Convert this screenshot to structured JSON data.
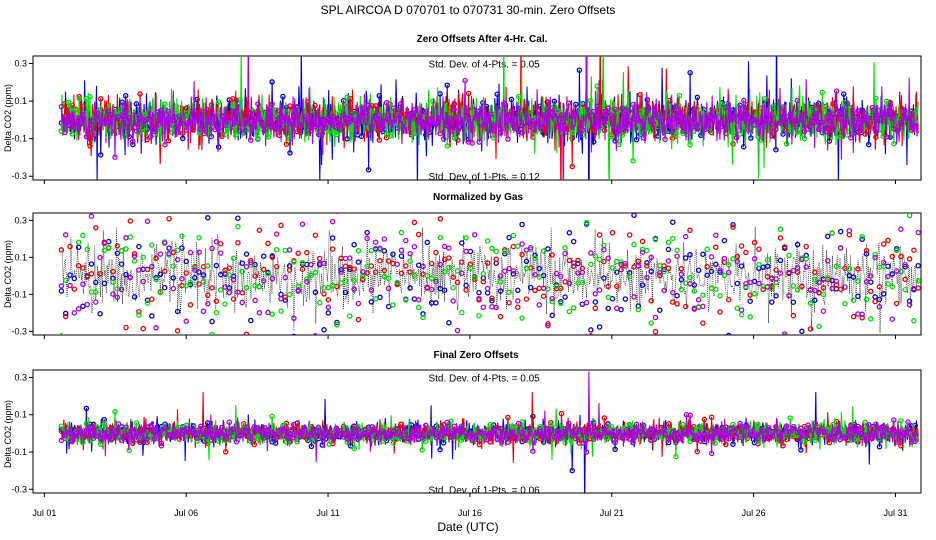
{
  "title": "SPL   AIRCOA D   070701 to 070731   30-min. Zero Offsets",
  "xlabel": "Date (UTC)",
  "colors": {
    "gas1": "#0000dd",
    "gas2": "#ee0000",
    "gas3": "#00dd00",
    "gas4": "#aa00dd",
    "mean": "#000000"
  },
  "chart_data": [
    {
      "type": "line",
      "title": "Zero Offsets After 4-Hr. Cal.",
      "ylabel": "Delta CO2 (ppm)",
      "ylim": [
        -0.32,
        0.34
      ],
      "yticks": [
        0.3,
        0.1,
        -0.1,
        -0.3
      ],
      "ytick_labels": [
        "0.3",
        "0.1",
        "-0.1",
        "-0.3"
      ],
      "xlim": [
        0.6,
        31.9
      ],
      "xticks": [
        1,
        6,
        11,
        16,
        21,
        26,
        31
      ],
      "xtick_labels": [
        "Jul 01",
        "Jul 06",
        "Jul 11",
        "Jul 16",
        "Jul 21",
        "Jul 26",
        "Jul 31"
      ],
      "annotations": [
        {
          "text": "Std. Dev. of 4-Pts. =  0.05",
          "x": 16.5,
          "y": 0.3
        },
        {
          "text": "Std. Dev. of 1-Pts. =  0.12",
          "x": 16.5,
          "y": -0.3
        }
      ],
      "series": [
        {
          "name": "gas1",
          "color": "#0000dd",
          "seed": 11,
          "amp": 0.13,
          "spikes": [
            [
              20.1,
              0.6
            ],
            [
              20.2,
              -0.6
            ],
            [
              10.7,
              -0.32
            ],
            [
              26.8,
              0.5
            ]
          ]
        },
        {
          "name": "gas2",
          "color": "#ee0000",
          "seed": 23,
          "amp": 0.12,
          "spikes": [
            [
              17.8,
              0.45
            ],
            [
              19.2,
              -0.5
            ],
            [
              20.6,
              0.5
            ]
          ]
        },
        {
          "name": "gas3",
          "color": "#00dd00",
          "seed": 37,
          "amp": 0.12,
          "spikes": [
            [
              17.2,
              0.4
            ],
            [
              20.7,
              0.5
            ],
            [
              20.9,
              -0.4
            ]
          ]
        },
        {
          "name": "gas4",
          "color": "#aa00dd",
          "seed": 53,
          "amp": 0.11,
          "spikes": [
            [
              8.2,
              0.45
            ],
            [
              19.3,
              -0.5
            ],
            [
              20.1,
              0.6
            ]
          ]
        }
      ],
      "mean_line": false,
      "n_points": 1440
    },
    {
      "type": "scatter",
      "title": "Normalized by Gas",
      "ylabel": "Delta CO2 (ppm)",
      "ylim": [
        -0.32,
        0.34
      ],
      "yticks": [
        0.3,
        0.1,
        -0.1,
        -0.3
      ],
      "ytick_labels": [
        "0.3",
        "0.1",
        "-0.1",
        "-0.3"
      ],
      "xlim": [
        0.6,
        31.9
      ],
      "xticks": [
        1,
        6,
        11,
        16,
        21,
        26,
        31
      ],
      "xtick_labels": [
        "Jul 01",
        "Jul 06",
        "Jul 11",
        "Jul 16",
        "Jul 21",
        "Jul 26",
        "Jul 31"
      ],
      "annotations": [],
      "series": [
        {
          "name": "gas1",
          "color": "#0000dd",
          "seed": 71,
          "amp": 0.17,
          "spikes": []
        },
        {
          "name": "gas2",
          "color": "#ee0000",
          "seed": 83,
          "amp": 0.17,
          "spikes": []
        },
        {
          "name": "gas3",
          "color": "#00dd00",
          "seed": 97,
          "amp": 0.17,
          "spikes": []
        },
        {
          "name": "gas4",
          "color": "#aa00dd",
          "seed": 101,
          "amp": 0.17,
          "spikes": []
        }
      ],
      "mean_line": true,
      "n_points": 200
    },
    {
      "type": "line",
      "title": "Final Zero Offsets",
      "ylabel": "Delta CO2 (ppm)",
      "ylim": [
        -0.32,
        0.34
      ],
      "yticks": [
        0.3,
        0.1,
        -0.1,
        -0.3
      ],
      "ytick_labels": [
        "0.3",
        "0.1",
        "-0.1",
        "-0.3"
      ],
      "xlim": [
        0.6,
        31.9
      ],
      "xticks": [
        1,
        6,
        11,
        16,
        21,
        26,
        31
      ],
      "xtick_labels": [
        "Jul 01",
        "Jul 06",
        "Jul 11",
        "Jul 16",
        "Jul 21",
        "Jul 26",
        "Jul 31"
      ],
      "annotations": [
        {
          "text": "Std. Dev. of 4-Pts. =  0.05",
          "x": 16.5,
          "y": 0.3
        },
        {
          "text": "Std. Dev. of 1-Pts. =  0.06",
          "x": 16.5,
          "y": -0.3
        }
      ],
      "series": [
        {
          "name": "gas1",
          "color": "#0000dd",
          "seed": 131,
          "amp": 0.06,
          "spikes": [
            [
              19.6,
              -0.2
            ],
            [
              20.05,
              -0.38
            ],
            [
              28.2,
              0.22
            ]
          ]
        },
        {
          "name": "gas2",
          "color": "#ee0000",
          "seed": 149,
          "amp": 0.06,
          "spikes": [
            [
              6.6,
              0.22
            ],
            [
              18.2,
              0.22
            ]
          ]
        },
        {
          "name": "gas3",
          "color": "#00dd00",
          "seed": 163,
          "amp": 0.06,
          "spikes": [
            [
              18.9,
              -0.14
            ]
          ]
        },
        {
          "name": "gas4",
          "color": "#aa00dd",
          "seed": 179,
          "amp": 0.055,
          "spikes": [
            [
              20.2,
              0.33
            ],
            [
              20.1,
              -0.1
            ]
          ]
        }
      ],
      "mean_line": true,
      "n_points": 1440
    }
  ]
}
